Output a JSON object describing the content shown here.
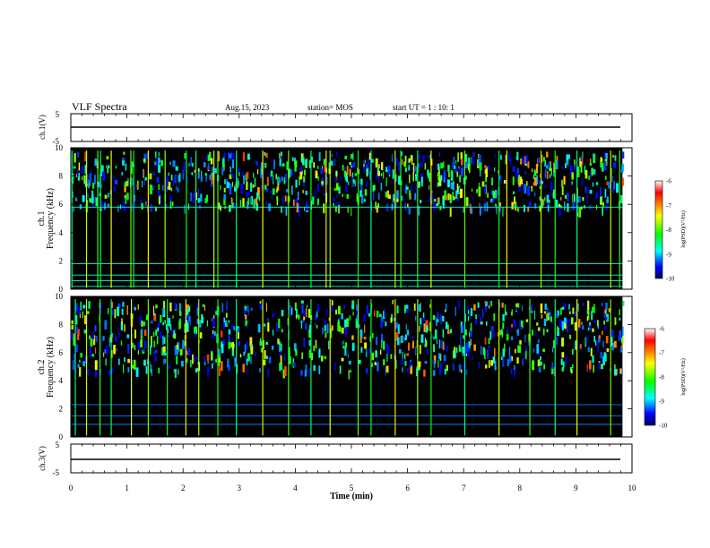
{
  "header": {
    "title": "VLF Spectra",
    "date": "Aug.15, 2023",
    "station": "station= MOS",
    "start_ut": "start  UT =   1 : 10: 1"
  },
  "panels": {
    "ch1_waveform": {
      "label": "ch.1(V)",
      "ymax": "5",
      "ymin": "-5"
    },
    "ch1_spectrogram": {
      "channel": "ch.1",
      "axis": "Frequency (kHz)",
      "yticks": [
        "0",
        "2",
        "4",
        "6",
        "8",
        "10"
      ]
    },
    "ch2_spectrogram": {
      "channel": "ch.2",
      "axis": "Frequency (kHz)",
      "yticks": [
        "0",
        "2",
        "4",
        "6",
        "8",
        "10"
      ]
    },
    "ch3_waveform": {
      "label": "ch.3(V)",
      "ymax": "5",
      "ymin": "-5"
    }
  },
  "xaxis": {
    "label": "Time  (min)",
    "ticks": [
      "0",
      "1",
      "2",
      "3",
      "4",
      "5",
      "6",
      "7",
      "8",
      "9",
      "10"
    ]
  },
  "colorbar": {
    "label": "log(PSD)(V²/Hz)",
    "ticks": [
      "-6",
      "-7",
      "-8",
      "-9",
      "-10"
    ],
    "colors": [
      "#ff0000",
      "#ffff00",
      "#00ff00",
      "#00ffff",
      "#0000ff",
      "#000080"
    ]
  },
  "chart_data": {
    "type": "heatmap",
    "title": "VLF Spectra",
    "xlabel": "Time  (min)",
    "ylabel": "Frequency (kHz)",
    "xlim": [
      0,
      10
    ],
    "ylim": [
      0,
      10
    ],
    "data_end_min": 9.83,
    "zlim": [
      -10,
      -6
    ],
    "colorscale": "jet",
    "series": [
      {
        "name": "ch.1",
        "background_level": -10,
        "horizontal_lines_khz": [
          0.2,
          0.6,
          1.0,
          1.8,
          5.8
        ],
        "horizontal_lines_level": -8.5,
        "emission_band_khz": [
          5.5,
          9.5
        ],
        "emission_level_range": [
          -9.5,
          -6.5
        ],
        "sferic_times_min": [
          0.02,
          0.28,
          0.48,
          0.53,
          0.72,
          1.07,
          1.12,
          1.38,
          1.68,
          2.06,
          2.23,
          2.55,
          2.62,
          2.95,
          3.42,
          3.88,
          4.28,
          4.55,
          4.62,
          5.12,
          5.35,
          5.78,
          5.88,
          6.18,
          6.42,
          7.02,
          7.63,
          7.77,
          8.38,
          8.63,
          9.02,
          9.62,
          9.78
        ]
      },
      {
        "name": "ch.2",
        "background_level": -10,
        "horizontal_lines_khz": [
          0.9,
          1.5,
          2.3
        ],
        "horizontal_lines_level": -9,
        "emission_band_khz": [
          4.5,
          9.5
        ],
        "emission_level_range": [
          -9.5,
          -6.5
        ],
        "sferic_times_min": [
          0.08,
          0.28,
          0.52,
          0.72,
          1.08,
          1.38,
          1.72,
          2.05,
          2.28,
          2.62,
          2.95,
          3.42,
          3.88,
          4.28,
          4.62,
          5.12,
          5.35,
          5.78,
          6.18,
          6.42,
          7.02,
          7.63,
          8.18,
          8.63,
          9.02,
          9.62
        ]
      }
    ],
    "waveforms": [
      {
        "name": "ch.1(V)",
        "ylim": [
          -5,
          5
        ],
        "level": 0
      },
      {
        "name": "ch.3(V)",
        "ylim": [
          -5,
          5
        ],
        "level": 0
      }
    ]
  }
}
